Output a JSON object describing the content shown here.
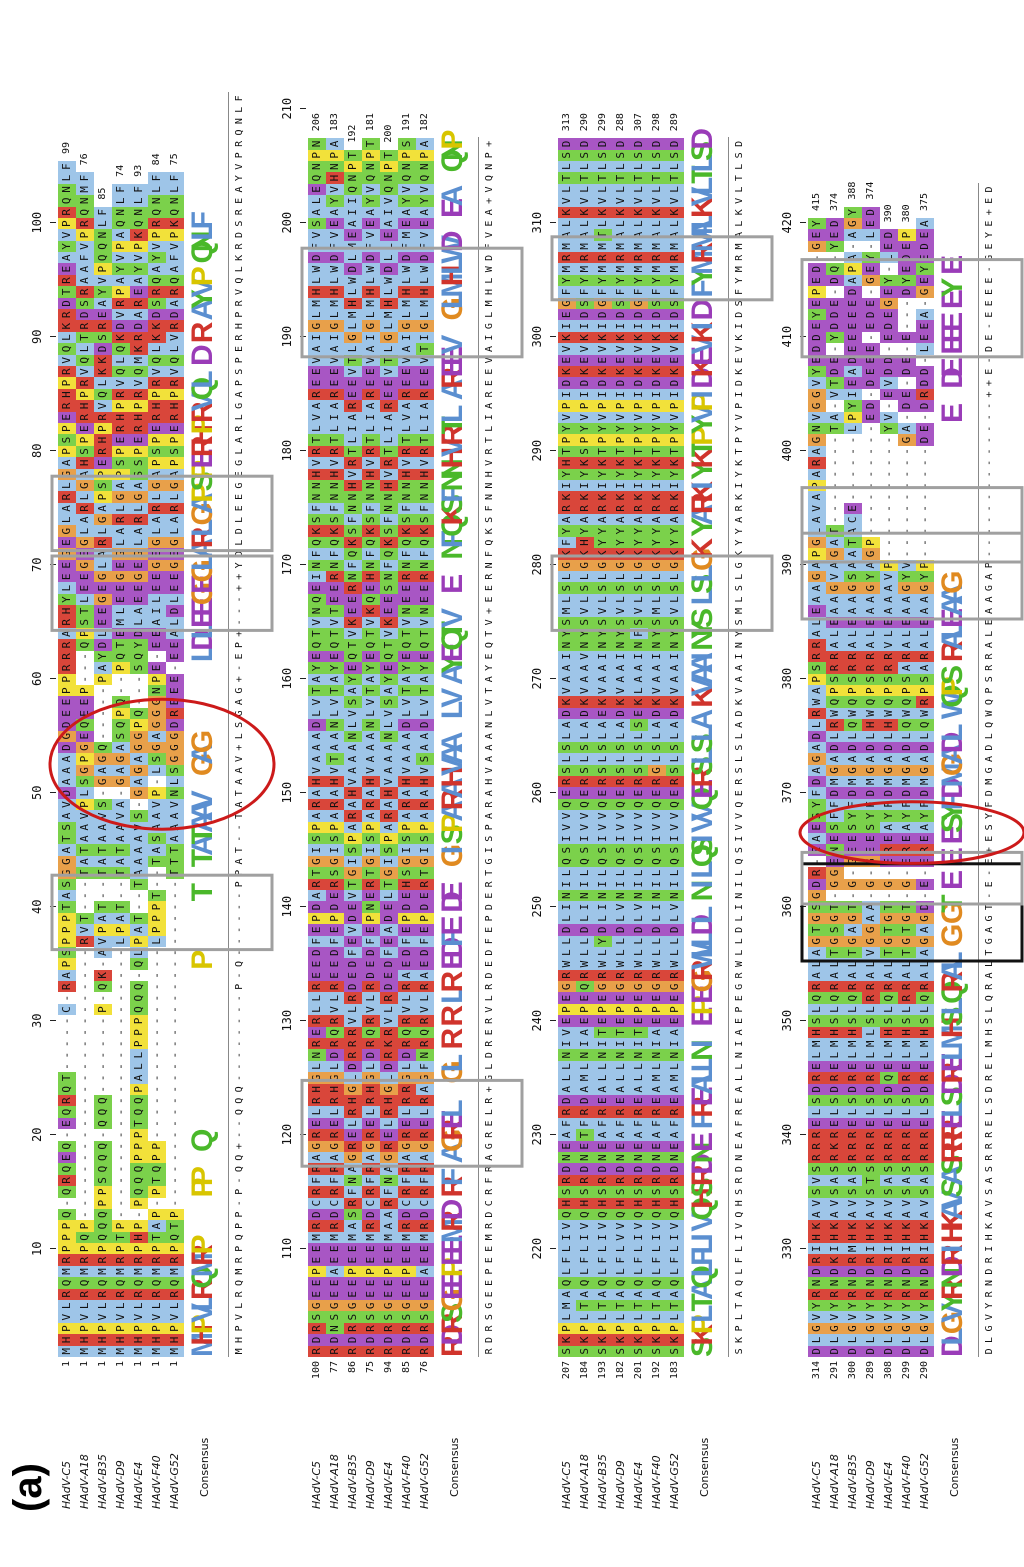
{
  "panel_label": "(a)",
  "consensus_label": "Consensus",
  "colors": {
    "hydrophobic": "#9ec5e8",
    "gly": "#e8a04a",
    "pro": "#f2e13a",
    "acidic": "#a856c4",
    "basic": "#d9463a",
    "polar": "#7bd14b",
    "other": "#ffffff",
    "box_gray": "#a0a0a0",
    "box_black": "#111111",
    "ellipse_red": "#cc1a1a"
  },
  "sequences": [
    "HAdV-C5",
    "HAdV-A18",
    "HAdV-B35",
    "HAdV-D9",
    "HAdV-E4",
    "HAdV-F40",
    "HAdV-G52"
  ],
  "blocks": [
    {
      "starts": [
        "1",
        "1",
        "1",
        "1",
        "1",
        "1",
        "1"
      ],
      "ends": [
        "99",
        "76",
        "85",
        "74",
        "93",
        "84",
        "75"
      ],
      "ticks": [
        "10",
        "20",
        "30",
        "40",
        "50",
        "60",
        "70",
        "80",
        "90",
        "100"
      ],
      "rows": [
        "MHPVLRQMRPPPQ-QRQEQ-EQRQT-----C-RAPSPPPTASGGATSAVDAAADGDEEPPRRRARHYLEEGEGLARLGAPSPERHPRVQLKRDTREAYVPRQNLF",
        "MHPVLRQMRPQP------------------------RVT---TATAAVPLSGPGEQEEP---QPSTLEEGEGLARLGAHSPERHPRVQLTRDSRAAFVPRQNMF",
        "MHPVLRQMRPQQQPPSQQQ-QQQ-------P-QK-AVPAT--TATAAVS-GAGQ-----PAYDLEEGEGLARLGAPSPERHPRVQLKKDSREAYVPQQNLF",
        "MHPVLRQMRPTP------------------------LPAT--TATAAVA-GAGASQPQ--PQTEMLEEGEGLARLGAPSPERHPRVQLQKDVRPAYVPAQNLF",
        "MHPVLRQMRPHP-PQQQPPPTQQPALLPPPQQQ-QLPAT--TAAAAVS-GAGAGGPQ---SQYDLAEEGEGLARLGASSPERHPRVQMKRDAREAYVPKQNLF",
        "MHPVLRQMRPTAP-PTQPP-----------------LPPPT--TASAAVP-LSGAGGGNPE-EEAILEEGEGLARLGAPSPERHPRVQLKKDSRQAYVPRQNLF",
        "MHPVLRQMRPQTP-----------------------------TTTAAAVNLSGGGDREEE-EEALDLEEGEGLARLGAPSPERHPRVQLVRDARQAFVPKQNLF"
      ],
      "consensus": "MHPVLRQMRPQPP-P-QQ+--QQQ--------P-Q------PPAT--TATAAV+LSGAG+-EP+---++YDLDLEEGEGLARLGAPSPERHPRVQLKRDSREAYVPRQNLF",
      "logo": "MHPVLRQMRP    PP  Q               P     T  TATAAV  GAG       LDLEEGEGLARLGAPSPERHPRVQL D R AYVP QNLF"
    },
    {
      "starts": [
        "100",
        "77",
        "86",
        "75",
        "94",
        "85",
        "76"
      ],
      "ends": [
        "206",
        "183",
        "192",
        "181",
        "200",
        "191",
        "182"
      ],
      "ticks": [
        "110",
        "120",
        "130",
        "140",
        "150",
        "160",
        "170",
        "180",
        "190",
        "200",
        "210"
      ],
      "rows": [
        "RDRSGEEPEEMRDCRFRAGRELRHGLNRERLLREEDFEPDARTGISPARAHVAAADLVTAYEQTVNQEINFQKSFNNHVRTLVAREEVAIGLMHLWDFVSALEQNPN",
        "RDNSGEEAEEMRDCRFRAGRELRHGLDRQRVLREEDFEPDERSGISPARAHVTAANLVTAYEQTVTEERNFQKSFNNHVRTLIAREEVAIGLMHLWDFVEAYVHNPA",
        "RDRSGEEPEEMASRFNAGRELRHGLDRRRVLRDEDFEVDEVTGISPARAHVAAANLVSAYEQTVKEERNFQKSFNNHVRTLIAREEVTLGLMHLWDLMEAIIQNPT",
        "RDRSGEEPEEMRDCRFRAGRELRHGLDRQRVLRDEDFEPNERTGISPARAHVAAANLVTAYEQTVKQEHNFQKSFNNHVRTLIAREEVAIGLMHLWDFVEAYVQNPT",
        "RDRSGEEPEEMAARFNAGRELRHGLDRKRVLRDEDFEADELTGISPARAHVAAANLVSAYEQTVKEESNFQKSFNNHVRTLIAREEVTLGLMHLWDLLEAIVQNPT",
        "RDRSGEEPEEMRDCRFRAGRELRRGLDRQRVLRAEDFEPDEHSGISPARAHVAAADLVTAYEQTVNEERNFQKSFNNHVRTLVAREEVAIGLMHLWDFMEAYVQNPS",
        "RDRSGEEAEEMRDCRFRAGRELRAGFNRQRVLRAEDFEPDERTGISPARAHVSAADLVTAYEQTVNEERNFQKSFNNHVRTLIAREEVTIGLMHLWDFVEAYVQNPA"
      ],
      "consensus": "RDRSGEEPEEMRDCRFRAGRELR+GLDRERVLRDEDFEPDERTGISPARAHVAAANLVTAYEQTV+EERNFQKSFNNHVRTLIAREEVAIGLMHLWDFVEA+VQNP+",
      "logo": "RDRSGEEPEEMRD RF AGREL  GL R R LR EDFE DE  GISPARAHVAA  LV AYEQTV  E  NFQKSFNNHVRTL AREEV  GLMHLWD  EA  QNP"
    },
    {
      "starts": [
        "207",
        "184",
        "193",
        "182",
        "201",
        "192",
        "183"
      ],
      "ends": [
        "313",
        "290",
        "299",
        "288",
        "307",
        "298",
        "289"
      ],
      "ticks": [
        "220",
        "230",
        "240",
        "250",
        "260",
        "270",
        "280",
        "290",
        "300",
        "310"
      ],
      "rows": [
        "SKPLMAQLFLIVQHSRDNEAFRDALLNIVEPEGRWLLDLINILQSIVVQERSLSLADKVAAINYSMLSLGKFYARKIYHTPYVPIDKEVKIEGFYMRMALKVLTLSD",
        "SKPLTAQLFLIVQHSRDNETFRDAMLNIAEPEQRWLLDLINILQSIVVQERSLSLADKVAAVNYSVLSLGKHYARKIYKSPYVPIDKEVKIDSFYMRMALKVLTLSD",
        "SKPLTAQLFLIVQHSRDNEAFREALLNITEPEGRWLYDLINILQSIVVQERSLSLAEKVAAINYSVLSLGKYYARKIYKTPYVPIDKEVKIDGFYMRMTLKVLTLSD",
        "SKPLTAQLFLVVQHSRDNEAFREALLNITEPEGRWLLDLVNILQSIVVQERSLSLADKVAAINYSVLSLGKYYARKIYKTPYVPIDKEVKIDSFYMRMALKVLTLSD",
        "SKPLTAQLFLIVQHSRDNEAFREALLNITEPEGRWLLDLVNILQSIVVQERSLSLSEKLAAINFSVLSLGKYYARKIYKTPYVPIDKEVKIDGFYMRMALKVLTLSD",
        "SKPLTAQLFLIVQHSRDNEAFREAMLNIAEPEGRWLLDLINILQSIVVQERGLSLADKVAAINYSMLSLGKYYARKIYKTPYVPIDKEVKIDSFYMRMALKVLTLSD",
        "SKPLTAQLFLIVQHSRDNEAFREAMLNIAEPEGRWLLDLVNILQSIVVQERSLSLADKVAAINYSVLSLGKYYARKIYKTPYVPIDKEVKIDSFYMRMALKVLTLSD"
      ],
      "consensus": "SKPLTAQLFLIVQHSRDNEAFREALLNIAEPEGRWLLDLINILQSIVVQERSLSLADKVAAINYSMLSLGKYYARKIYKTPYVPIDKEVKIDSFYMRMALKVLTLSD",
      "logo": "SKPLTAQLFLIVQHSRDNE FREALLNI EPEGRWLLDL NILQSIVVQERSLSLA KVAAINYS LSLGK YARKIYKTPYVPIDKEVKID FYMRMALKVLTLSD"
    },
    {
      "starts": [
        "314",
        "291",
        "300",
        "289",
        "308",
        "299",
        "290"
      ],
      "ends": [
        "415",
        "374",
        "388",
        "374",
        "390",
        "380",
        "375"
      ],
      "ticks": [
        "330",
        "340",
        "350",
        "360",
        "370",
        "380",
        "390",
        "400",
        "410",
        "420"
      ],
      "rows": [
        "DLGVYRNDRIHKAVSVSRRRELSDRELMHSLQRALAGTGSGDR-EAESYFDAGADLRWAPSRRALEAAGAPGLAVAPARAGNVGGVYEDDEYEPED-GEY",
        "DLGVYRNDKIHKAVSASRKRELSDRELMHSLQRALTGSGT-GGENESFFDMGADLRWQPSRRALEAAGVAGAT--------TA-VTDE-YDDE-DQ-YED",
        "DLGVYRNDRMHKAVSASRRRELSDRELMHSLQRALTGAGT-G-GEESYFDMGADLQWQPSRRALEAAGSAATACE------LPYIEADEEEEEDAPA-AGY",
        "DLGVYRNDRIHKAVSTSRRRELSDRELMLSLRRALVGGAA-G-GEESYFDMGADLHWQPSRRALEAAGYAGP----------ED-DEEE-EDE-GEY-LED",
        "DLGVYRNDRIHKAVSASRRRELSDQELMHSLQRALTGTGT-G-EREAYFDMGADLHWQPSRRVLEAAAVP-----------YV-EVDD-EDEGEY-LED",
        "DLGVYRNDRIHKAVSASRRRELSDRELMHSLRRALTGTGT-G-EREAYFDMGADLQWQPSARALEAAGYV----------GA-DE-DE-E---DYEDEP",
        "DLGVYRNDRIHKAVSASRRRELSDRELMHSLQRALAGAGD-E-EREAYFDMGADLQWRPSARALEAAGYP----------DE-DRDD-LEEA-GEYEDEA"
      ],
      "consensus": "DLGVYRNDRIHKAVSASRRRELSDRELMHSLQRALTGAGT-E-E+ESYFDMGADLQWQPSRRALEAAGAP--------------++E-DE-EEEE-GEYE+ED",
      "logo": "DLGVYRNDRIHKAVSASRRRELSDRELMHSLQRAL G GT E E ESYFDMGADL WQPS RALEAAG              E  DE EEE EY E"
    }
  ]
}
